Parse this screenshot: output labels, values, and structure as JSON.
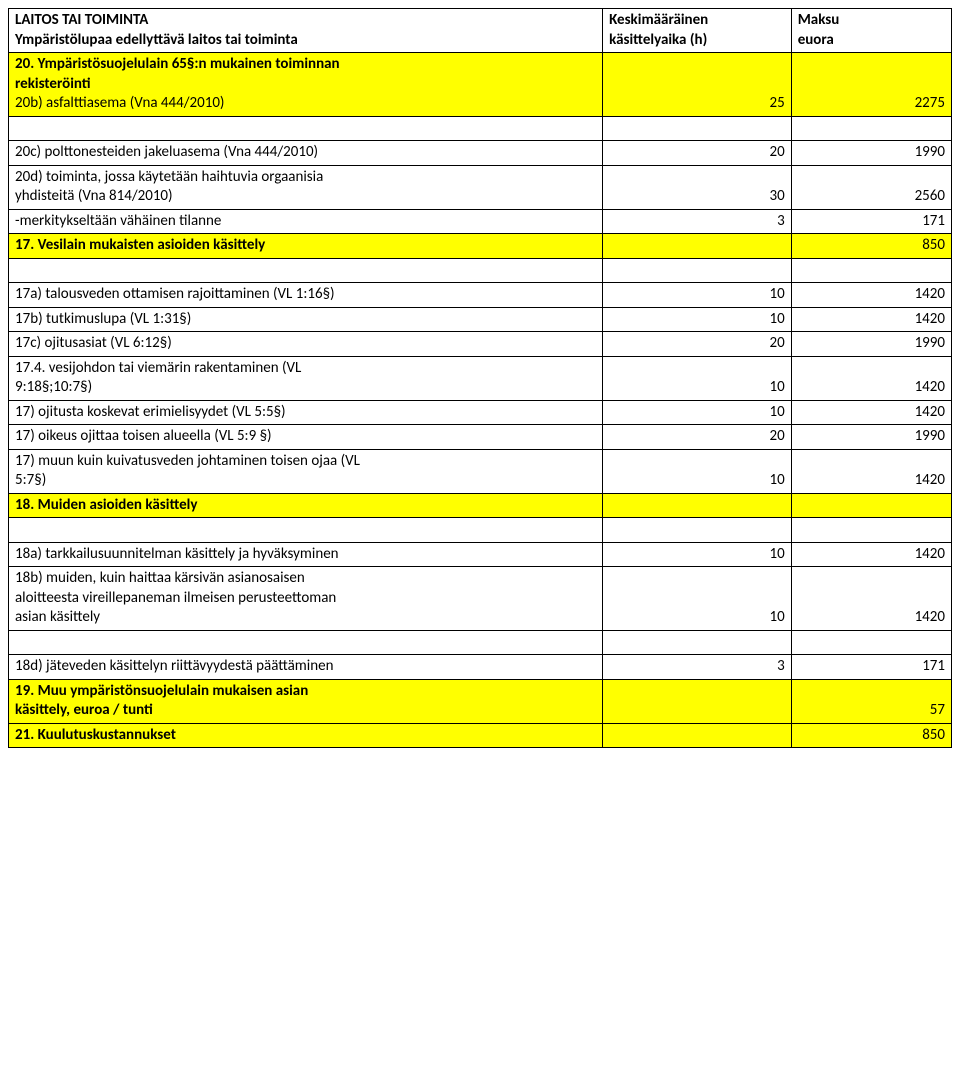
{
  "colors": {
    "highlight": "#ffff00",
    "border": "#000000",
    "text": "#000000",
    "bg": "#ffffff"
  },
  "header": {
    "col1_line1": "LAITOS TAI TOIMINTA",
    "col1_line2": "Ympäristölupaa edellyttävä laitos tai toiminta",
    "col2_line1": "Keskimääräinen",
    "col2_line2": "käsittelyaika (h)",
    "col3_line1": "Maksu",
    "col3_line2": "euora"
  },
  "s20": {
    "title_line1": "20. Ympäristösuojelulain 65§:n mukainen toiminnan",
    "title_line2": "rekisteröinti",
    "r20b": {
      "label": "20b) asfalttiasema (Vna 444/2010)",
      "h": "25",
      "fee": "2275"
    },
    "gap_h": "",
    "gap_fee": "",
    "r20c": {
      "label": "20c) polttonesteiden jakeluasema (Vna 444/2010)",
      "h": "20",
      "fee": "1990"
    },
    "r20d": {
      "label_line1": "20d) toiminta, jossa käytetään haihtuvia orgaanisia",
      "label_line2": "yhdisteitä (Vna 814/2010)",
      "h": "30",
      "fee": "2560"
    },
    "rminor": {
      "label": "-merkitykseltään vähäinen tilanne",
      "h": "3",
      "fee": "171"
    }
  },
  "s17": {
    "title": "17. Vesilain mukaisten asioiden käsittely",
    "title_fee": "850",
    "gap_h": "",
    "gap_fee": "",
    "r17a": {
      "label": "17a) talousveden ottamisen rajoittaminen (VL 1:16§)",
      "h": "10",
      "fee": "1420"
    },
    "r17b": {
      "label": "17b) tutkimuslupa (VL 1:31§)",
      "h": "10",
      "fee": "1420"
    },
    "r17c": {
      "label": "17c) ojitusasiat (VL 6:12§)",
      "h": "20",
      "fee": "1990"
    },
    "r174": {
      "label_line1": "17.4. vesijohdon tai viemärin rakentaminen (VL",
      "label_line2": "9:18§;10:7§)",
      "h": "10",
      "fee": "1420"
    },
    "r17e": {
      "label": "17) ojitusta koskevat erimielisyydet (VL 5:5§)",
      "h": "10",
      "fee": "1420"
    },
    "r17f": {
      "label": "17) oikeus ojittaa toisen alueella (VL 5:9 §)",
      "h": "20",
      "fee": "1990"
    },
    "r17g": {
      "label_line1": "17) muun kuin kuivatusveden johtaminen toisen ojaa (VL",
      "label_line2": "5:7§)",
      "h": "10",
      "fee": "1420"
    }
  },
  "s18": {
    "title": "18. Muiden asioiden käsittely",
    "gap_h": "",
    "gap_fee": "",
    "r18a": {
      "label": "18a) tarkkailusuunnitelman käsittely ja hyväksyminen",
      "h": "10",
      "fee": "1420"
    },
    "r18b": {
      "label_line1": "18b) muiden, kuin haittaa kärsivän asianosaisen",
      "label_line2": "aloitteesta vireillepaneman ilmeisen perusteettoman",
      "label_line3": "asian käsittely",
      "h": "10",
      "fee": "1420"
    },
    "gap2_h": "",
    "gap2_fee": "",
    "r18d": {
      "label": "18d) jäteveden käsittelyn riittävyydestä päättäminen",
      "h": "3",
      "fee": "171"
    }
  },
  "s19": {
    "title_line1": "19. Muu ympäristönsuojelulain mukaisen asian",
    "title_line2": "käsittely, euroa / tunti",
    "fee": "57"
  },
  "s21": {
    "title": "21. Kuulutuskustannukset",
    "fee": "850"
  }
}
